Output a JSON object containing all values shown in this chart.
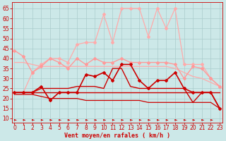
{
  "background_color": "#cce8e8",
  "grid_color": "#aacccc",
  "xlabel": "Vent moyen/en rafales ( km/h )",
  "xlabel_color": "#cc0000",
  "xlabel_fontsize": 6,
  "yticks": [
    10,
    15,
    20,
    25,
    30,
    35,
    40,
    45,
    50,
    55,
    60,
    65
  ],
  "xticks": [
    0,
    1,
    2,
    3,
    4,
    5,
    6,
    7,
    8,
    9,
    10,
    11,
    12,
    13,
    14,
    15,
    16,
    17,
    18,
    19,
    20,
    21,
    22,
    23
  ],
  "ylim": [
    8,
    68
  ],
  "xlim": [
    -0.3,
    23.3
  ],
  "series": [
    {
      "y": [
        23,
        23,
        23,
        26,
        19,
        23,
        23,
        23,
        32,
        31,
        33,
        29,
        37,
        37,
        29,
        25,
        29,
        29,
        33,
        25,
        23,
        23,
        23,
        15
      ],
      "color": "#cc0000",
      "lw": 1.2,
      "marker": "D",
      "ms": 2.0,
      "zorder": 5
    },
    {
      "y": [
        23,
        23,
        23,
        25,
        25,
        25,
        25,
        26,
        26,
        26,
        25,
        35,
        35,
        26,
        25,
        25,
        25,
        25,
        25,
        25,
        18,
        23,
        23,
        15
      ],
      "color": "#cc0000",
      "lw": 1.0,
      "marker": null,
      "ms": 0,
      "zorder": 4
    },
    {
      "y": [
        23,
        23,
        23,
        23,
        23,
        23,
        23,
        23,
        23,
        23,
        23,
        23,
        23,
        23,
        23,
        23,
        23,
        23,
        23,
        23,
        23,
        23,
        23,
        23
      ],
      "color": "#cc0000",
      "lw": 1.0,
      "marker": null,
      "ms": 0,
      "zorder": 3
    },
    {
      "y": [
        22,
        22,
        22,
        21,
        20,
        20,
        20,
        20,
        19,
        19,
        19,
        19,
        19,
        19,
        19,
        18,
        18,
        18,
        18,
        18,
        18,
        18,
        18,
        15
      ],
      "color": "#cc0000",
      "lw": 0.9,
      "marker": null,
      "ms": 0,
      "zorder": 3
    },
    {
      "y": [
        44,
        41,
        33,
        36,
        40,
        38,
        35,
        40,
        37,
        40,
        38,
        38,
        40,
        38,
        38,
        38,
        38,
        38,
        37,
        30,
        36,
        35,
        30,
        26
      ],
      "color": "#ff9999",
      "lw": 1.0,
      "marker": "D",
      "ms": 2.0,
      "zorder": 4
    },
    {
      "y": [
        23,
        23,
        33,
        37,
        40,
        40,
        38,
        47,
        48,
        48,
        62,
        48,
        65,
        65,
        65,
        51,
        65,
        55,
        65,
        37,
        37,
        37,
        30,
        26
      ],
      "color": "#ffaaaa",
      "lw": 0.9,
      "marker": "D",
      "ms": 2.0,
      "zorder": 3
    },
    {
      "y": [
        38,
        38,
        37,
        36,
        36,
        36,
        36,
        36,
        36,
        36,
        36,
        36,
        36,
        36,
        36,
        36,
        36,
        36,
        35,
        33,
        31,
        30,
        28,
        26
      ],
      "color": "#ffaaaa",
      "lw": 0.9,
      "marker": null,
      "ms": 0,
      "zorder": 2
    }
  ],
  "tick_fontsize": 5.5,
  "tick_color": "#cc0000"
}
